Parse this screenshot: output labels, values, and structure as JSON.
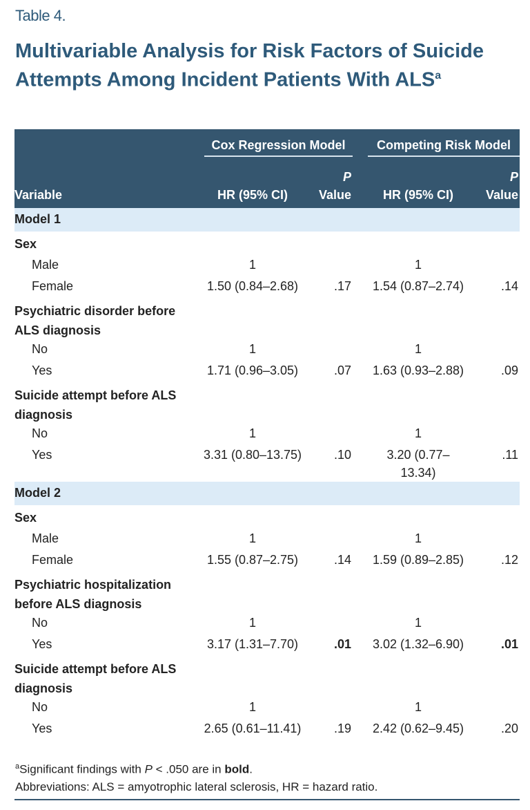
{
  "label": "Table 4.",
  "title": "Multivariable Analysis for Risk Factors of Suicide Attempts Among Incident Patients With ALS",
  "title_sup": "a",
  "colors": {
    "title": "#2e5a7a",
    "header_bg": "#35566f",
    "section_bg": "#dcebf7"
  },
  "header": {
    "group1": "Cox Regression Model",
    "group2": "Competing Risk Model",
    "variable": "Variable",
    "hr": "HR (95% CI)",
    "p_italic": "P",
    "p_value": "Value"
  },
  "rows": [
    {
      "type": "section",
      "v": "Model 1"
    },
    {
      "type": "group",
      "v": "Sex"
    },
    {
      "type": "sub",
      "v": "Male",
      "hr1": "1",
      "p1": "",
      "hr2": "1",
      "p2": ""
    },
    {
      "type": "sub",
      "v": "Female",
      "hr1": "1.50 (0.84–2.68)",
      "p1": ".17",
      "hr2": "1.54 (0.87–2.74)",
      "p2": ".14"
    },
    {
      "type": "group",
      "v": "Psychiatric disorder before ALS diagnosis"
    },
    {
      "type": "sub",
      "v": "No",
      "hr1": "1",
      "p1": "",
      "hr2": "1",
      "p2": ""
    },
    {
      "type": "sub",
      "v": "Yes",
      "hr1": "1.71 (0.96–3.05)",
      "p1": ".07",
      "hr2": "1.63 (0.93–2.88)",
      "p2": ".09"
    },
    {
      "type": "group",
      "v": "Suicide attempt before ALS diagnosis"
    },
    {
      "type": "sub",
      "v": "No",
      "hr1": "1",
      "p1": "",
      "hr2": "1",
      "p2": ""
    },
    {
      "type": "sub",
      "v": "Yes",
      "hr1": "3.31 (0.80–13.75)",
      "p1": ".10",
      "hr2": "3.20 (0.77–13.34)",
      "p2": ".11"
    },
    {
      "type": "section",
      "v": "Model 2"
    },
    {
      "type": "group",
      "v": "Sex"
    },
    {
      "type": "sub",
      "v": "Male",
      "hr1": "1",
      "p1": "",
      "hr2": "1",
      "p2": ""
    },
    {
      "type": "sub",
      "v": "Female",
      "hr1": "1.55 (0.87–2.75)",
      "p1": ".14",
      "hr2": "1.59 (0.89–2.85)",
      "p2": ".12"
    },
    {
      "type": "group",
      "v": "Psychiatric hospitalization before ALS diagnosis"
    },
    {
      "type": "sub",
      "v": "No",
      "hr1": "1",
      "p1": "",
      "hr2": "1",
      "p2": ""
    },
    {
      "type": "sub",
      "v": "Yes",
      "hr1": "3.17 (1.31–7.70)",
      "p1": ".01",
      "p1_bold": true,
      "hr2": "3.02 (1.32–6.90)",
      "p2": ".01",
      "p2_bold": true
    },
    {
      "type": "group",
      "v": "Suicide attempt before ALS diagnosis"
    },
    {
      "type": "sub",
      "v": "No",
      "hr1": "1",
      "p1": "",
      "hr2": "1",
      "p2": ""
    },
    {
      "type": "sub",
      "v": "Yes",
      "hr1": "2.65 (0.61–11.41)",
      "p1": ".19",
      "hr2": "2.42 (0.62–9.45)",
      "p2": ".20"
    }
  ],
  "footnote": {
    "sup": "a",
    "text1": "Significant findings with ",
    "p": "P",
    "text2": " < .050 are in ",
    "bold": "bold",
    "text3": ".",
    "abbrev": "Abbreviations: ALS = amyotrophic lateral sclerosis, HR = hazard ratio."
  }
}
